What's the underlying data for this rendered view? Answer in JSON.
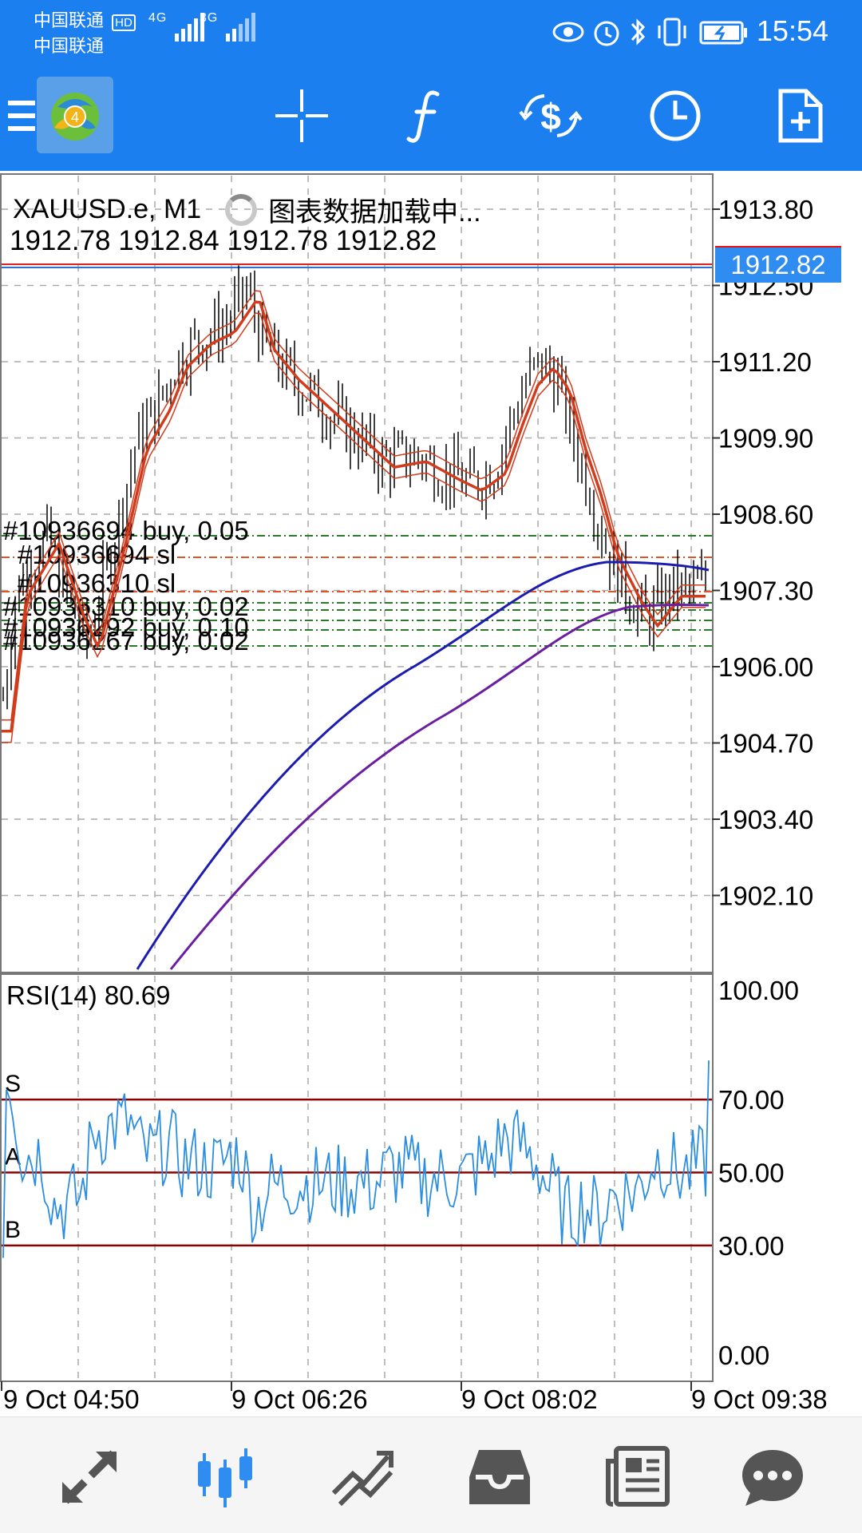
{
  "status_bar": {
    "carrier1": "中国联通",
    "carrier1_badge": "HD",
    "carrier2": "中国联通",
    "signal1": "4G",
    "signal2": "3G",
    "time": "15:54"
  },
  "toolbar": {
    "menu_icon": "menu-icon",
    "app_logo": "metatrader-logo",
    "crosshair": "crosshair-icon",
    "indicators": "function-icon",
    "trade": "dollar-refresh-icon",
    "timeframe": "clock-icon",
    "new_order": "new-document-icon",
    "colors": {
      "bar": "#1c7ff0"
    }
  },
  "chart": {
    "symbol": "XAUUSD.e, M1",
    "loading_text": "图表数据加载中...",
    "ohlc": "1912.78 1912.84 1912.78 1912.82",
    "current_price": "1912.82",
    "price_axis": [
      "1913.80",
      "1912.50",
      "1911.20",
      "1909.90",
      "1908.60",
      "1907.30",
      "1906.00",
      "1904.70",
      "1903.40",
      "1902.10"
    ],
    "orders": [
      {
        "label": "#10936694 buy, 0.05",
        "style": "green"
      },
      {
        "label": "#10936694 sl",
        "style": "red"
      },
      {
        "label": "#10936310 sl",
        "style": "red"
      },
      {
        "label": "#10936310 buy, 0.02",
        "style": "green"
      },
      {
        "label": "#10936292 buy, 0.10",
        "style": "green"
      },
      {
        "label": "#10936267 buy, 0.02",
        "style": "green"
      }
    ],
    "time_axis": [
      "9 Oct 04:50",
      "9 Oct 06:26",
      "9 Oct 08:02",
      "9 Oct 09:38"
    ],
    "colors": {
      "candles": "#000000",
      "ma_fast": "#d23b1b",
      "ma_blue": "#1c1cb0",
      "ma_purple": "#6a1ea0",
      "current_price": "#2f6fd8"
    }
  },
  "rsi": {
    "label": "RSI(14) 80.69",
    "axis": [
      "100.00",
      "70.00",
      "50.00",
      "30.00",
      "0.00"
    ],
    "level_labels": [
      "S",
      "A",
      "B"
    ],
    "colors": {
      "line": "#2b8ee0",
      "levels": "#8b0000"
    }
  },
  "bottom_nav": {
    "quotes": "quotes-arrows-icon",
    "chart": "candlestick-chart-icon",
    "trade": "trade-trend-icon",
    "history": "inbox-icon",
    "news": "news-icon",
    "chat": "chat-bubble-icon",
    "active": "chart"
  }
}
